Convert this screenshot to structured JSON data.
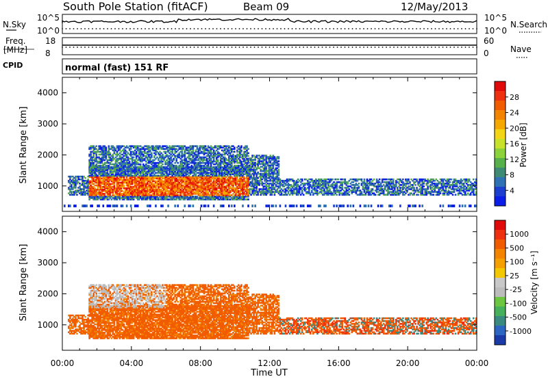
{
  "header": {
    "station": "South Pole Station (fitACF)",
    "beam": "Beam 09",
    "date": "12/May/2013"
  },
  "panels": {
    "nsky_label": "N.Sky",
    "nsearch_label": "N.Search",
    "freq_label_1": "Freq.",
    "freq_label_2": "[MHz]",
    "nave_label": "Nave",
    "cpid_label": "CPID",
    "cpid_text": "normal (fast) 151 RF",
    "noise_ticks": [
      "10^5",
      "10^0"
    ],
    "freq_ticks": [
      "18",
      "8"
    ],
    "nave_ticks": [
      "60",
      "0"
    ]
  },
  "chart_data": [
    {
      "type": "heatmap",
      "name": "power",
      "ylabel": "Slant Range [km]",
      "xlabel": "Time UT",
      "xticks": [
        "00:00",
        "04:00",
        "08:00",
        "12:00",
        "16:00",
        "20:00",
        "00:00"
      ],
      "yticks": [
        1000,
        2000,
        3000,
        4000
      ],
      "ylim": [
        180,
        4500
      ],
      "xlim_hours": [
        0,
        24
      ],
      "colorbar": {
        "label": "Power [dB]",
        "ticks": [
          "4",
          "8",
          "12",
          "16",
          "20",
          "24",
          "28"
        ],
        "colors": [
          "#0a1ee8",
          "#1c3fd0",
          "#2f72b4",
          "#3f8a74",
          "#58b04a",
          "#8cd23a",
          "#c8e22c",
          "#f2d616",
          "#f4a800",
          "#f38400",
          "#f25c00",
          "#ee3010",
          "#e10a0a"
        ]
      }
    },
    {
      "type": "heatmap",
      "name": "velocity",
      "ylabel": "Slant Range [km]",
      "xlabel": "Time UT",
      "xticks": [
        "00:00",
        "04:00",
        "08:00",
        "12:00",
        "16:00",
        "20:00",
        "00:00"
      ],
      "yticks": [
        1000,
        2000,
        3000,
        4000
      ],
      "ylim": [
        180,
        4500
      ],
      "xlim_hours": [
        0,
        24
      ],
      "colorbar": {
        "label": "Velocity [m s⁻¹]",
        "ticks": [
          "1000",
          "500",
          "100",
          "25",
          "-25",
          "-100",
          "-500",
          "-1000"
        ],
        "colors": [
          "#1a3aa8",
          "#2c66c0",
          "#3a8a80",
          "#46b05a",
          "#6cc640",
          "#bcbcbc",
          "#c8c8c8",
          "#f4c800",
          "#f4a000",
          "#f38400",
          "#f25c00",
          "#ee3010",
          "#e00a0a"
        ]
      }
    }
  ]
}
